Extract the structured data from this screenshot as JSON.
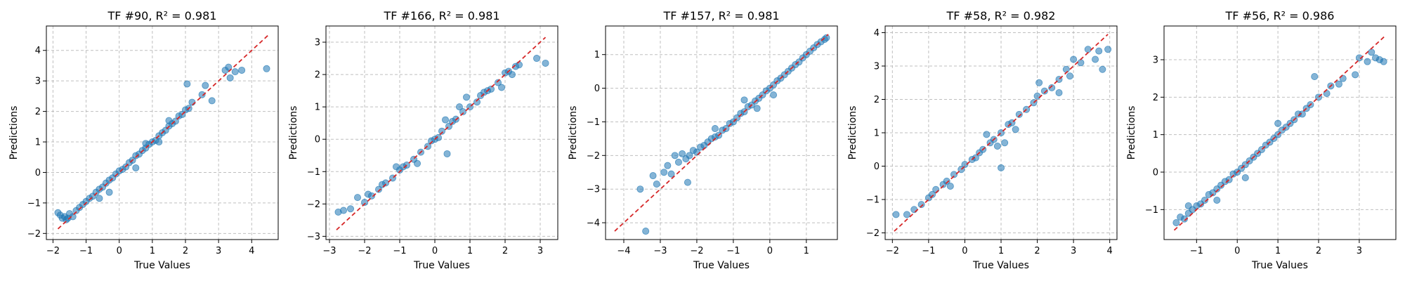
{
  "chart_data": [
    {
      "type": "scatter",
      "title": "TF #90, R² = 0.981",
      "xlabel": "True Values",
      "ylabel": "Predictions",
      "xlim": [
        -2.2,
        4.8
      ],
      "ylim": [
        -2.2,
        4.8
      ],
      "xticks": [
        -2,
        -1,
        0,
        1,
        2,
        3,
        4
      ],
      "yticks": [
        -2,
        -1,
        0,
        1,
        2,
        3,
        4
      ],
      "grid": true,
      "reference_line": {
        "from": -1.85,
        "to": 4.5,
        "color": "#d62728",
        "style": "dashed"
      },
      "point_color": "#1f77b4",
      "points": [
        [
          -1.85,
          -1.32
        ],
        [
          -1.78,
          -1.4
        ],
        [
          -1.72,
          -1.5
        ],
        [
          -1.65,
          -1.45
        ],
        [
          -1.6,
          -1.55
        ],
        [
          -1.55,
          -1.5
        ],
        [
          -1.5,
          -1.35
        ],
        [
          -1.4,
          -1.45
        ],
        [
          -1.3,
          -1.25
        ],
        [
          -1.2,
          -1.15
        ],
        [
          -1.1,
          -1.05
        ],
        [
          -1.0,
          -0.95
        ],
        [
          -0.9,
          -0.85
        ],
        [
          -0.8,
          -0.78
        ],
        [
          -0.7,
          -0.65
        ],
        [
          -0.6,
          -0.55
        ],
        [
          -0.5,
          -0.48
        ],
        [
          -0.4,
          -0.35
        ],
        [
          -0.3,
          -0.25
        ],
        [
          -0.2,
          -0.18
        ],
        [
          -0.1,
          -0.05
        ],
        [
          0.0,
          0.05
        ],
        [
          0.1,
          0.1
        ],
        [
          0.2,
          0.18
        ],
        [
          0.3,
          0.32
        ],
        [
          0.4,
          0.4
        ],
        [
          0.5,
          0.55
        ],
        [
          0.6,
          0.6
        ],
        [
          0.7,
          0.72
        ],
        [
          0.8,
          0.8
        ],
        [
          0.9,
          0.92
        ],
        [
          1.0,
          1.0
        ],
        [
          1.1,
          1.05
        ],
        [
          1.2,
          1.2
        ],
        [
          1.3,
          1.3
        ],
        [
          1.4,
          1.38
        ],
        [
          1.5,
          1.52
        ],
        [
          1.6,
          1.6
        ],
        [
          1.7,
          1.68
        ],
        [
          1.8,
          1.85
        ],
        [
          1.9,
          1.9
        ],
        [
          2.0,
          2.05
        ],
        [
          2.1,
          2.1
        ],
        [
          2.2,
          2.3
        ],
        [
          2.5,
          2.55
        ],
        [
          2.6,
          2.85
        ],
        [
          3.2,
          3.35
        ],
        [
          3.3,
          3.45
        ],
        [
          3.35,
          3.1
        ],
        [
          3.5,
          3.3
        ],
        [
          3.7,
          3.35
        ],
        [
          4.45,
          3.4
        ],
        [
          2.05,
          2.9
        ],
        [
          0.5,
          0.15
        ],
        [
          0.8,
          0.95
        ],
        [
          -0.3,
          -0.65
        ],
        [
          -0.6,
          -0.85
        ],
        [
          1.2,
          1.0
        ],
        [
          1.5,
          1.7
        ],
        [
          2.8,
          2.35
        ]
      ]
    },
    {
      "type": "scatter",
      "title": "TF #166, R² = 0.981",
      "xlabel": "True Values",
      "ylabel": "Predictions",
      "xlim": [
        -3.1,
        3.5
      ],
      "ylim": [
        -3.1,
        3.5
      ],
      "xticks": [
        -3,
        -2,
        -1,
        0,
        1,
        2,
        3
      ],
      "yticks": [
        -3,
        -2,
        -1,
        0,
        1,
        2,
        3
      ],
      "grid": true,
      "reference_line": {
        "from": -2.8,
        "to": 3.15,
        "color": "#d62728",
        "style": "dashed"
      },
      "point_color": "#1f77b4",
      "points": [
        [
          -2.75,
          -2.25
        ],
        [
          -2.6,
          -2.2
        ],
        [
          -2.4,
          -2.15
        ],
        [
          -2.2,
          -1.8
        ],
        [
          -2.0,
          -1.95
        ],
        [
          -1.9,
          -1.7
        ],
        [
          -1.8,
          -1.75
        ],
        [
          -1.6,
          -1.55
        ],
        [
          -1.5,
          -1.4
        ],
        [
          -1.4,
          -1.35
        ],
        [
          -1.2,
          -1.2
        ],
        [
          -1.0,
          -0.95
        ],
        [
          -0.9,
          -0.85
        ],
        [
          -0.8,
          -0.8
        ],
        [
          -0.6,
          -0.62
        ],
        [
          -0.4,
          -0.4
        ],
        [
          -0.2,
          -0.22
        ],
        [
          -0.1,
          -0.05
        ],
        [
          0.0,
          0.0
        ],
        [
          0.1,
          0.05
        ],
        [
          0.2,
          0.25
        ],
        [
          0.4,
          0.4
        ],
        [
          0.5,
          0.55
        ],
        [
          0.6,
          0.62
        ],
        [
          0.8,
          0.85
        ],
        [
          1.0,
          1.0
        ],
        [
          1.2,
          1.15
        ],
        [
          1.3,
          1.35
        ],
        [
          1.4,
          1.45
        ],
        [
          1.6,
          1.55
        ],
        [
          1.8,
          1.75
        ],
        [
          2.0,
          2.05
        ],
        [
          2.1,
          2.1
        ],
        [
          2.3,
          2.25
        ],
        [
          2.4,
          2.3
        ],
        [
          2.9,
          2.5
        ],
        [
          3.15,
          2.35
        ],
        [
          0.35,
          -0.45
        ],
        [
          0.9,
          1.3
        ],
        [
          1.5,
          1.5
        ],
        [
          -0.5,
          -0.75
        ],
        [
          0.7,
          1.0
        ],
        [
          1.9,
          1.6
        ],
        [
          -1.1,
          -0.85
        ],
        [
          2.2,
          2.0
        ],
        [
          0.3,
          0.6
        ]
      ]
    },
    {
      "type": "scatter",
      "title": "TF #157, R² = 0.981",
      "xlabel": "True Values",
      "ylabel": "Predictions",
      "xlim": [
        -4.5,
        1.85
      ],
      "ylim": [
        -4.5,
        1.85
      ],
      "xticks": [
        -4,
        -3,
        -2,
        -1,
        0,
        1
      ],
      "yticks": [
        -4,
        -3,
        -2,
        -1,
        0,
        1
      ],
      "grid": true,
      "reference_line": {
        "from": -4.25,
        "to": 1.6,
        "color": "#d62728",
        "style": "dashed"
      },
      "point_color": "#1f77b4",
      "points": [
        [
          -3.55,
          -3.0
        ],
        [
          -3.4,
          -4.25
        ],
        [
          -3.2,
          -2.6
        ],
        [
          -3.1,
          -2.85
        ],
        [
          -2.9,
          -2.5
        ],
        [
          -2.8,
          -2.3
        ],
        [
          -2.7,
          -2.55
        ],
        [
          -2.6,
          -2.0
        ],
        [
          -2.5,
          -2.2
        ],
        [
          -2.4,
          -1.95
        ],
        [
          -2.3,
          -2.1
        ],
        [
          -2.25,
          -2.8
        ],
        [
          -2.2,
          -2.0
        ],
        [
          -2.1,
          -1.85
        ],
        [
          -2.0,
          -1.9
        ],
        [
          -1.9,
          -1.75
        ],
        [
          -1.8,
          -1.7
        ],
        [
          -1.7,
          -1.6
        ],
        [
          -1.6,
          -1.5
        ],
        [
          -1.5,
          -1.45
        ],
        [
          -1.4,
          -1.4
        ],
        [
          -1.3,
          -1.25
        ],
        [
          -1.2,
          -1.2
        ],
        [
          -1.1,
          -1.05
        ],
        [
          -1.0,
          -1.0
        ],
        [
          -0.9,
          -0.88
        ],
        [
          -0.8,
          -0.75
        ],
        [
          -0.7,
          -0.7
        ],
        [
          -0.6,
          -0.55
        ],
        [
          -0.5,
          -0.5
        ],
        [
          -0.4,
          -0.38
        ],
        [
          -0.3,
          -0.3
        ],
        [
          -0.2,
          -0.2
        ],
        [
          -0.1,
          -0.08
        ],
        [
          0.0,
          0.0
        ],
        [
          0.1,
          0.1
        ],
        [
          0.2,
          0.22
        ],
        [
          0.3,
          0.3
        ],
        [
          0.4,
          0.4
        ],
        [
          0.5,
          0.5
        ],
        [
          0.6,
          0.6
        ],
        [
          0.7,
          0.7
        ],
        [
          0.8,
          0.78
        ],
        [
          0.9,
          0.9
        ],
        [
          1.0,
          1.0
        ],
        [
          1.1,
          1.1
        ],
        [
          1.2,
          1.2
        ],
        [
          1.3,
          1.3
        ],
        [
          1.4,
          1.38
        ],
        [
          1.5,
          1.45
        ],
        [
          1.55,
          1.5
        ],
        [
          -0.35,
          -0.6
        ],
        [
          -0.7,
          -0.35
        ],
        [
          0.1,
          -0.2
        ],
        [
          -1.5,
          -1.2
        ]
      ]
    },
    {
      "type": "scatter",
      "title": "TF #58, R² = 0.982",
      "xlabel": "True Values",
      "ylabel": "Predictions",
      "xlim": [
        -2.2,
        4.2
      ],
      "ylim": [
        -2.2,
        4.2
      ],
      "xticks": [
        -2,
        -1,
        0,
        1,
        2,
        3,
        4
      ],
      "yticks": [
        -2,
        -1,
        0,
        1,
        2,
        3,
        4
      ],
      "grid": true,
      "reference_line": {
        "from": -1.95,
        "to": 3.95,
        "color": "#d62728",
        "style": "dashed"
      },
      "point_color": "#1f77b4",
      "points": [
        [
          -1.9,
          -1.45
        ],
        [
          -1.6,
          -1.45
        ],
        [
          -1.4,
          -1.3
        ],
        [
          -1.2,
          -1.15
        ],
        [
          -1.0,
          -0.95
        ],
        [
          -0.9,
          -0.85
        ],
        [
          -0.8,
          -0.7
        ],
        [
          -0.6,
          -0.55
        ],
        [
          -0.5,
          -0.45
        ],
        [
          -0.3,
          -0.25
        ],
        [
          -0.1,
          -0.1
        ],
        [
          0.0,
          0.05
        ],
        [
          0.2,
          0.2
        ],
        [
          0.3,
          0.25
        ],
        [
          0.4,
          0.4
        ],
        [
          0.5,
          0.5
        ],
        [
          0.7,
          0.7
        ],
        [
          0.8,
          0.8
        ],
        [
          1.0,
          1.0
        ],
        [
          1.1,
          0.7
        ],
        [
          1.2,
          1.25
        ],
        [
          1.3,
          1.3
        ],
        [
          1.5,
          1.55
        ],
        [
          1.7,
          1.7
        ],
        [
          1.9,
          1.9
        ],
        [
          2.0,
          2.1
        ],
        [
          2.2,
          2.25
        ],
        [
          2.4,
          2.35
        ],
        [
          2.6,
          2.6
        ],
        [
          2.8,
          2.9
        ],
        [
          3.0,
          3.2
        ],
        [
          3.2,
          3.1
        ],
        [
          3.4,
          3.5
        ],
        [
          3.6,
          3.2
        ],
        [
          3.7,
          3.45
        ],
        [
          3.8,
          2.9
        ],
        [
          3.95,
          3.5
        ],
        [
          1.0,
          -0.05
        ],
        [
          2.05,
          2.5
        ],
        [
          2.6,
          2.2
        ],
        [
          0.6,
          0.95
        ],
        [
          1.4,
          1.1
        ],
        [
          -0.4,
          -0.6
        ],
        [
          0.9,
          0.6
        ],
        [
          2.9,
          2.7
        ]
      ]
    },
    {
      "type": "scatter",
      "title": "TF #56, R² = 0.986",
      "xlabel": "True Values",
      "ylabel": "Predictions",
      "xlim": [
        -1.8,
        3.9
      ],
      "ylim": [
        -1.8,
        3.9
      ],
      "xticks": [
        -1,
        0,
        1,
        2,
        3
      ],
      "yticks": [
        -1,
        0,
        1,
        2,
        3
      ],
      "grid": true,
      "reference_line": {
        "from": -1.55,
        "to": 3.65,
        "color": "#d62728",
        "style": "dashed"
      },
      "point_color": "#1f77b4",
      "points": [
        [
          -1.5,
          -1.35
        ],
        [
          -1.4,
          -1.2
        ],
        [
          -1.3,
          -1.25
        ],
        [
          -1.2,
          -1.1
        ],
        [
          -1.1,
          -1.0
        ],
        [
          -1.0,
          -0.9
        ],
        [
          -0.9,
          -0.85
        ],
        [
          -0.8,
          -0.75
        ],
        [
          -0.7,
          -0.6
        ],
        [
          -0.6,
          -0.55
        ],
        [
          -0.5,
          -0.45
        ],
        [
          -0.4,
          -0.35
        ],
        [
          -0.3,
          -0.25
        ],
        [
          -0.2,
          -0.2
        ],
        [
          -0.1,
          -0.05
        ],
        [
          0.0,
          0.0
        ],
        [
          0.1,
          0.1
        ],
        [
          0.2,
          0.2
        ],
        [
          0.3,
          0.3
        ],
        [
          0.4,
          0.4
        ],
        [
          0.5,
          0.5
        ],
        [
          0.6,
          0.6
        ],
        [
          0.7,
          0.72
        ],
        [
          0.8,
          0.8
        ],
        [
          0.9,
          0.9
        ],
        [
          1.0,
          1.0
        ],
        [
          1.1,
          1.12
        ],
        [
          1.2,
          1.2
        ],
        [
          1.3,
          1.3
        ],
        [
          1.4,
          1.4
        ],
        [
          1.5,
          1.55
        ],
        [
          1.6,
          1.55
        ],
        [
          1.7,
          1.7
        ],
        [
          1.8,
          1.8
        ],
        [
          2.0,
          2.0
        ],
        [
          2.2,
          2.1
        ],
        [
          2.5,
          2.35
        ],
        [
          2.6,
          2.5
        ],
        [
          2.9,
          2.6
        ],
        [
          3.0,
          3.05
        ],
        [
          3.2,
          2.95
        ],
        [
          3.3,
          3.2
        ],
        [
          3.5,
          3.0
        ],
        [
          3.6,
          2.95
        ],
        [
          3.4,
          3.05
        ],
        [
          1.9,
          2.55
        ],
        [
          -0.5,
          -0.75
        ],
        [
          0.2,
          -0.15
        ],
        [
          1.0,
          1.3
        ],
        [
          -1.2,
          -0.9
        ],
        [
          2.3,
          2.3
        ]
      ]
    }
  ]
}
